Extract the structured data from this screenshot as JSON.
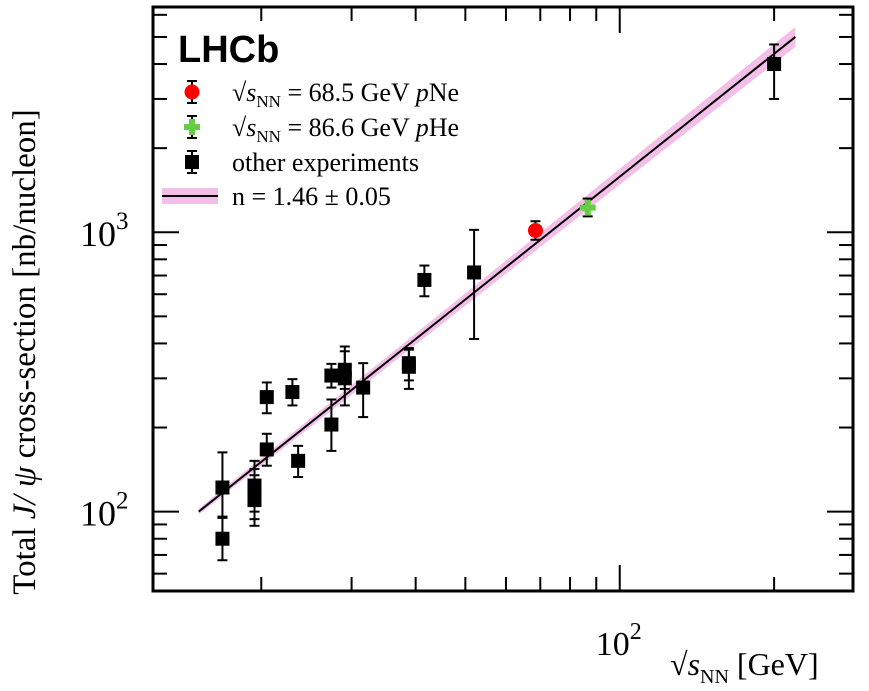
{
  "chart_data": {
    "type": "scatter",
    "experiment_label": "LHCb",
    "xlabel_prefix": "√",
    "xlabel_var": "s",
    "xlabel_sub": "NN",
    "xlabel_unit": "[GeV]",
    "ylabel_pre": "Total ",
    "ylabel_jpsi": "J/ ψ",
    "ylabel_post": " cross-section [nb/nucleon]",
    "xscale": "log",
    "yscale": "log",
    "xlim": [
      12.3,
      285
    ],
    "ylim": [
      52,
      6400
    ],
    "x_major_ticks": [
      {
        "value": 100,
        "base": "10",
        "exp": "2"
      }
    ],
    "y_major_ticks": [
      {
        "value": 100,
        "base": "10",
        "exp": "2"
      },
      {
        "value": 1000,
        "base": "10",
        "exp": "3"
      }
    ],
    "legend": [
      {
        "sqrt": "√",
        "var": "s",
        "sub": "NN",
        "text": " = 68.5 GeV ",
        "italic": "p",
        "tail": "Ne",
        "marker": "circle",
        "color": "#ff0000"
      },
      {
        "sqrt": "√",
        "var": "s",
        "sub": "NN",
        "text": " = 86.6 GeV ",
        "italic": "p",
        "tail": "He",
        "marker": "cross",
        "color": "#66cc44"
      },
      {
        "sqrt": "",
        "var": "",
        "sub": "",
        "text": "other experiments",
        "italic": "",
        "tail": "",
        "marker": "square",
        "color": "#000000"
      },
      {
        "sqrt": "",
        "var": "",
        "sub": "",
        "text": "n = 1.46 ± 0.05",
        "italic": "",
        "tail": "",
        "marker": "line",
        "color": "#000000"
      }
    ],
    "series": [
      {
        "name": "other experiments",
        "marker": "square",
        "color": "#000000",
        "points": [
          {
            "x": 16.8,
            "y": 80,
            "lo": 67,
            "hi": 96
          },
          {
            "x": 16.8,
            "y": 122,
            "lo": 95,
            "hi": 163
          },
          {
            "x": 19.4,
            "y": 110,
            "lo": 89,
            "hi": 135
          },
          {
            "x": 19.4,
            "y": 116,
            "lo": 94,
            "hi": 142
          },
          {
            "x": 19.4,
            "y": 124,
            "lo": 100,
            "hi": 152
          },
          {
            "x": 20.5,
            "y": 167,
            "lo": 146,
            "hi": 190
          },
          {
            "x": 20.5,
            "y": 257,
            "lo": 225,
            "hi": 290
          },
          {
            "x": 23.0,
            "y": 268,
            "lo": 240,
            "hi": 298
          },
          {
            "x": 23.6,
            "y": 152,
            "lo": 133,
            "hi": 172
          },
          {
            "x": 27.4,
            "y": 205,
            "lo": 165,
            "hi": 252
          },
          {
            "x": 27.4,
            "y": 307,
            "lo": 278,
            "hi": 338
          },
          {
            "x": 29.1,
            "y": 300,
            "lo": 240,
            "hi": 375
          },
          {
            "x": 29.1,
            "y": 322,
            "lo": 275,
            "hi": 390
          },
          {
            "x": 31.6,
            "y": 278,
            "lo": 218,
            "hi": 340
          },
          {
            "x": 38.8,
            "y": 330,
            "lo": 275,
            "hi": 380
          },
          {
            "x": 38.8,
            "y": 340,
            "lo": 295,
            "hi": 385
          },
          {
            "x": 41.6,
            "y": 675,
            "lo": 590,
            "hi": 760
          },
          {
            "x": 52.0,
            "y": 718,
            "lo": 415,
            "hi": 1020
          },
          {
            "x": 200,
            "y": 4000,
            "lo": 3000,
            "hi": 4700
          }
        ]
      },
      {
        "name": "√sNN = 68.5 GeV pNe",
        "marker": "circle",
        "color": "#ff0000",
        "points": [
          {
            "x": 68.5,
            "y": 1015,
            "lo": 940,
            "hi": 1095
          }
        ]
      },
      {
        "name": "√sNN = 86.6 GeV pHe",
        "marker": "cross",
        "color": "#66cc44",
        "points": [
          {
            "x": 86.6,
            "y": 1225,
            "lo": 1140,
            "hi": 1320
          }
        ]
      }
    ],
    "fit": {
      "label": "n = 1.46 ± 0.05",
      "n": 1.46,
      "x_range": [
        15.1,
        220
      ],
      "y_at_start": 100,
      "y_at_end": 5000,
      "line_color": "#000000",
      "band_color": "#e98bd6"
    }
  }
}
